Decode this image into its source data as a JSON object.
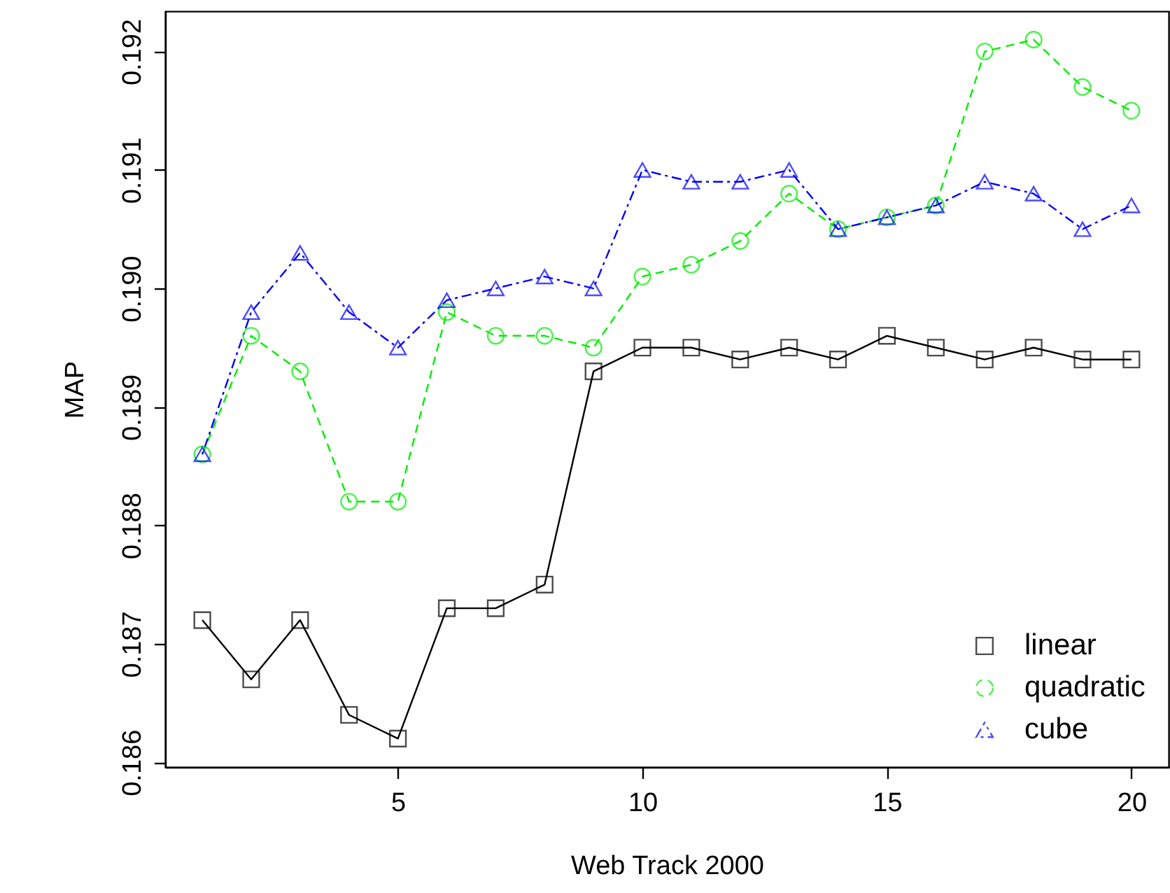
{
  "chart_data": {
    "type": "line",
    "xlabel": "Web Track 2000",
    "ylabel": "MAP",
    "x": [
      1,
      2,
      3,
      4,
      5,
      6,
      7,
      8,
      9,
      10,
      11,
      12,
      13,
      14,
      15,
      16,
      17,
      18,
      19,
      20
    ],
    "xlim": [
      0.24,
      20.76
    ],
    "xticks": [
      5,
      10,
      15,
      20
    ],
    "ylim": [
      0.18596,
      0.19234
    ],
    "yticks": [
      {
        "value": 0.186,
        "label": "0.186"
      },
      {
        "value": 0.187,
        "label": "0.187"
      },
      {
        "value": 0.188,
        "label": "0.188"
      },
      {
        "value": 0.189,
        "label": "0.189"
      },
      {
        "value": 0.19,
        "label": "0.190"
      },
      {
        "value": 0.191,
        "label": "0.191"
      },
      {
        "value": 0.192,
        "label": "0.192"
      }
    ],
    "grid": false,
    "legend": "bottom right",
    "series": [
      {
        "name": "linear",
        "color": "#000000",
        "marker": "square",
        "line_style": "solid",
        "values": [
          0.1872,
          0.1867,
          0.1872,
          0.1864,
          0.1862,
          0.1873,
          0.1873,
          0.1875,
          0.1893,
          0.1895,
          0.1895,
          0.1894,
          0.1895,
          0.1894,
          0.1896,
          0.1895,
          0.1894,
          0.1895,
          0.1894,
          0.1894
        ]
      },
      {
        "name": "quadratic",
        "color": "#00ee00",
        "marker": "circle",
        "line_style": "dashed",
        "values": [
          0.1886,
          0.1896,
          0.1893,
          0.1882,
          0.1882,
          0.1898,
          0.1896,
          0.1896,
          0.1895,
          0.1901,
          0.1902,
          0.1904,
          0.1908,
          0.1905,
          0.1906,
          0.1907,
          0.192,
          0.1921,
          0.1917,
          0.1915
        ]
      },
      {
        "name": "cube",
        "color": "#0000ff",
        "marker": "triangle",
        "line_style": "dotted",
        "values": [
          0.1886,
          0.1898,
          0.1903,
          0.1898,
          0.1895,
          0.1899,
          0.19,
          0.1901,
          0.19,
          0.191,
          0.1909,
          0.1909,
          0.191,
          0.1905,
          0.1906,
          0.1907,
          0.1909,
          0.1908,
          0.1905,
          0.1907
        ]
      }
    ]
  }
}
